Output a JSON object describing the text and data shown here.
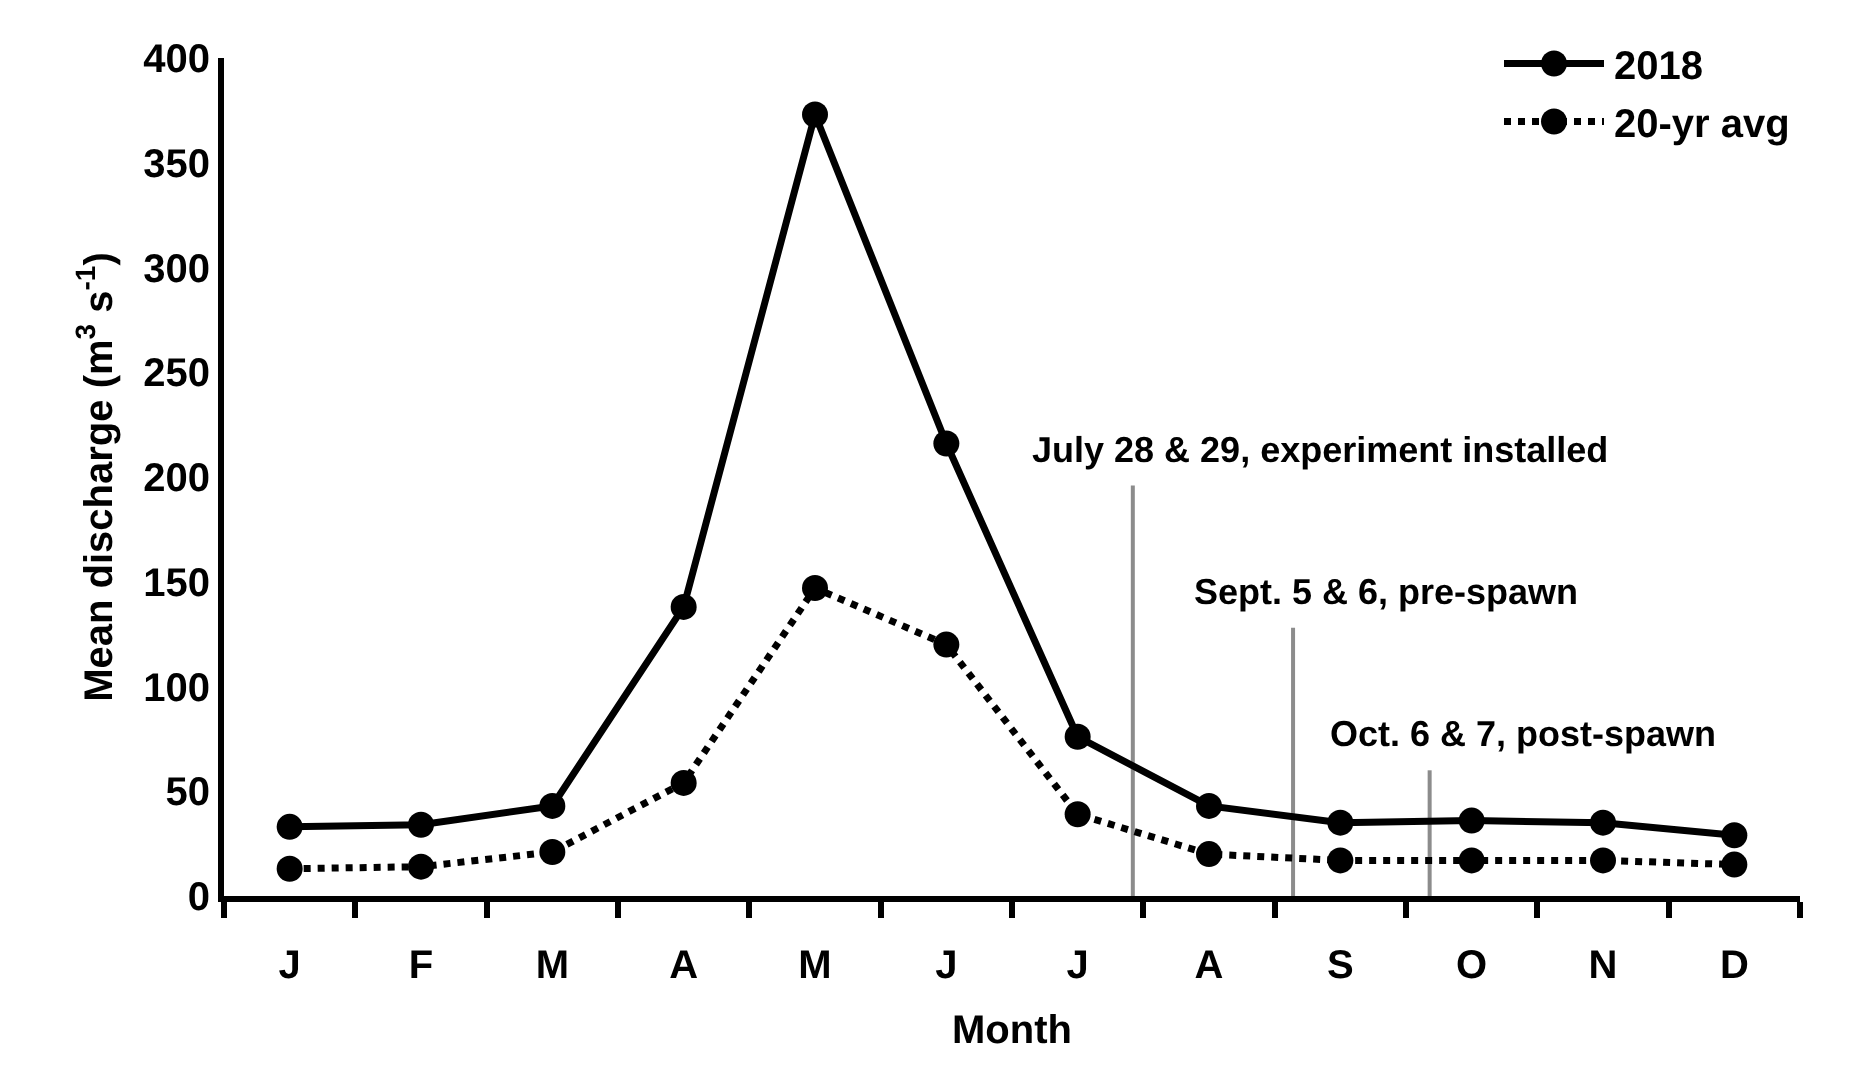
{
  "chart_data": {
    "type": "line",
    "xlabel": "Month",
    "ylabel": "Mean discharge (m$^{3}$ s$^{-1}$)",
    "categories": [
      "J",
      "F",
      "M",
      "A",
      "M",
      "J",
      "J",
      "A",
      "S",
      "O",
      "N",
      "D"
    ],
    "ylim": [
      0,
      400
    ],
    "yticks": [
      0,
      50,
      100,
      150,
      200,
      250,
      300,
      350,
      400
    ],
    "series": [
      {
        "name": "2018",
        "color": "#000000",
        "line_style": "solid",
        "values": [
          33,
          34,
          43,
          138,
          373,
          216,
          76,
          43,
          35,
          36,
          35,
          29
        ]
      },
      {
        "name": "20-yr avg",
        "color": "#000000",
        "line_style": "dotted",
        "values": [
          13,
          14,
          21,
          54,
          147,
          120,
          39,
          20,
          17,
          17,
          17,
          15
        ]
      }
    ],
    "marker": "circle",
    "grid": false,
    "legend": "top right",
    "annotations": [
      "July 28 & 29, experiment installed",
      "Sept. 5 & 6, pre-spawn",
      "Oct. 6 & 7, post-spawn"
    ]
  }
}
